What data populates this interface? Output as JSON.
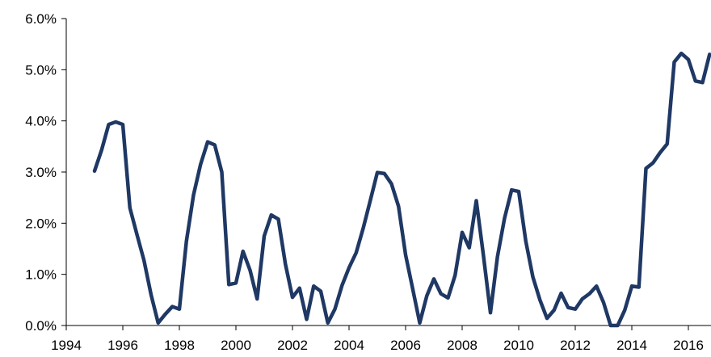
{
  "chart_data": {
    "type": "line",
    "title": "",
    "xlabel": "",
    "ylabel": "",
    "xlim": [
      1994,
      2016.8
    ],
    "ylim": [
      0,
      6
    ],
    "x_ticks": [
      1994,
      1996,
      1998,
      2000,
      2002,
      2004,
      2006,
      2008,
      2010,
      2012,
      2014,
      2016
    ],
    "x_tick_labels": [
      "1994",
      "1996",
      "1998",
      "2000",
      "2002",
      "2004",
      "2006",
      "2008",
      "2010",
      "2012",
      "2014",
      "2016"
    ],
    "y_ticks": [
      0,
      1,
      2,
      3,
      4,
      5,
      6
    ],
    "y_tick_labels": [
      "0.0%",
      "1.0%",
      "2.0%",
      "3.0%",
      "4.0%",
      "5.0%",
      "6.0%"
    ],
    "grid": false,
    "legend": "none",
    "colors": {
      "line": "#1f3864",
      "axis": "#000000"
    },
    "series": [
      {
        "x": [
          1995.0,
          1995.25,
          1995.5,
          1995.75,
          1996.0,
          1996.25,
          1996.5,
          1996.75,
          1997.0,
          1997.25,
          1997.5,
          1997.75,
          1998.0,
          1998.25,
          1998.5,
          1998.75,
          1999.0,
          1999.25,
          1999.5,
          1999.75,
          2000.0,
          2000.25,
          2000.5,
          2000.75,
          2001.0,
          2001.25,
          2001.5,
          2001.75,
          2002.0,
          2002.25,
          2002.5,
          2002.75,
          2003.0,
          2003.25,
          2003.5,
          2003.75,
          2004.0,
          2004.25,
          2004.5,
          2004.75,
          2005.0,
          2005.25,
          2005.5,
          2005.75,
          2006.0,
          2006.25,
          2006.5,
          2006.75,
          2007.0,
          2007.25,
          2007.5,
          2007.75,
          2008.0,
          2008.25,
          2008.5,
          2008.75,
          2009.0,
          2009.25,
          2009.5,
          2009.75,
          2010.0,
          2010.25,
          2010.5,
          2010.75,
          2011.0,
          2011.25,
          2011.5,
          2011.75,
          2012.0,
          2012.25,
          2012.5,
          2012.75,
          2013.0,
          2013.25,
          2013.5,
          2013.75,
          2014.0,
          2014.25,
          2014.5,
          2014.75,
          2015.0,
          2015.25,
          2015.5,
          2015.75,
          2016.0,
          2016.25,
          2016.5,
          2016.75
        ],
        "values": [
          3.02,
          3.43,
          3.93,
          3.98,
          3.93,
          2.3,
          1.78,
          1.27,
          0.6,
          0.05,
          0.22,
          0.37,
          0.32,
          1.65,
          2.55,
          3.15,
          3.59,
          3.53,
          3.0,
          0.8,
          0.83,
          1.45,
          1.08,
          0.52,
          1.75,
          2.16,
          2.08,
          1.2,
          0.55,
          0.73,
          0.12,
          0.77,
          0.67,
          0.05,
          0.32,
          0.78,
          1.13,
          1.42,
          1.9,
          2.44,
          2.99,
          2.97,
          2.77,
          2.33,
          1.38,
          0.72,
          0.05,
          0.58,
          0.91,
          0.62,
          0.54,
          0.98,
          1.82,
          1.52,
          2.44,
          1.38,
          0.25,
          1.35,
          2.1,
          2.65,
          2.62,
          1.65,
          0.95,
          0.5,
          0.14,
          0.3,
          0.63,
          0.35,
          0.32,
          0.52,
          0.62,
          0.77,
          0.45,
          0.0,
          0.0,
          0.3,
          0.77,
          0.75,
          3.07,
          3.18,
          3.38,
          3.55,
          5.15,
          5.32,
          5.2,
          4.78,
          4.75,
          5.3
        ]
      }
    ]
  }
}
